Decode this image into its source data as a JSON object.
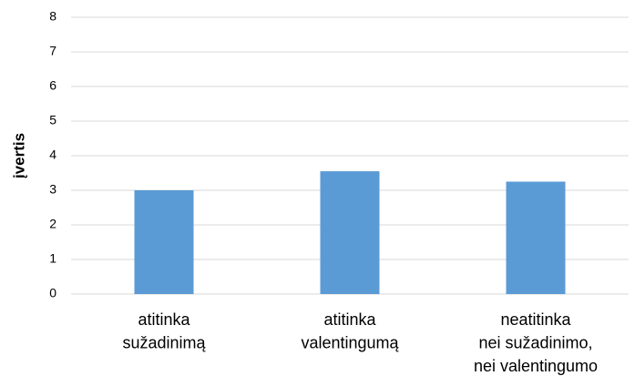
{
  "chart_data": {
    "type": "bar",
    "y_label": "įvertis",
    "categories": [
      [
        "atitinka",
        "sužadinimą"
      ],
      [
        "atitinka",
        "valentingumą"
      ],
      [
        "neatitinka",
        "nei sužadinimo,",
        "nei valentingumo"
      ]
    ],
    "values": [
      3.0,
      3.55,
      3.25
    ],
    "color": "#5b9bd5",
    "ylim": [
      0,
      8
    ],
    "yticks": [
      0,
      1,
      2,
      3,
      4,
      5,
      6,
      7,
      8
    ],
    "grid": true
  }
}
